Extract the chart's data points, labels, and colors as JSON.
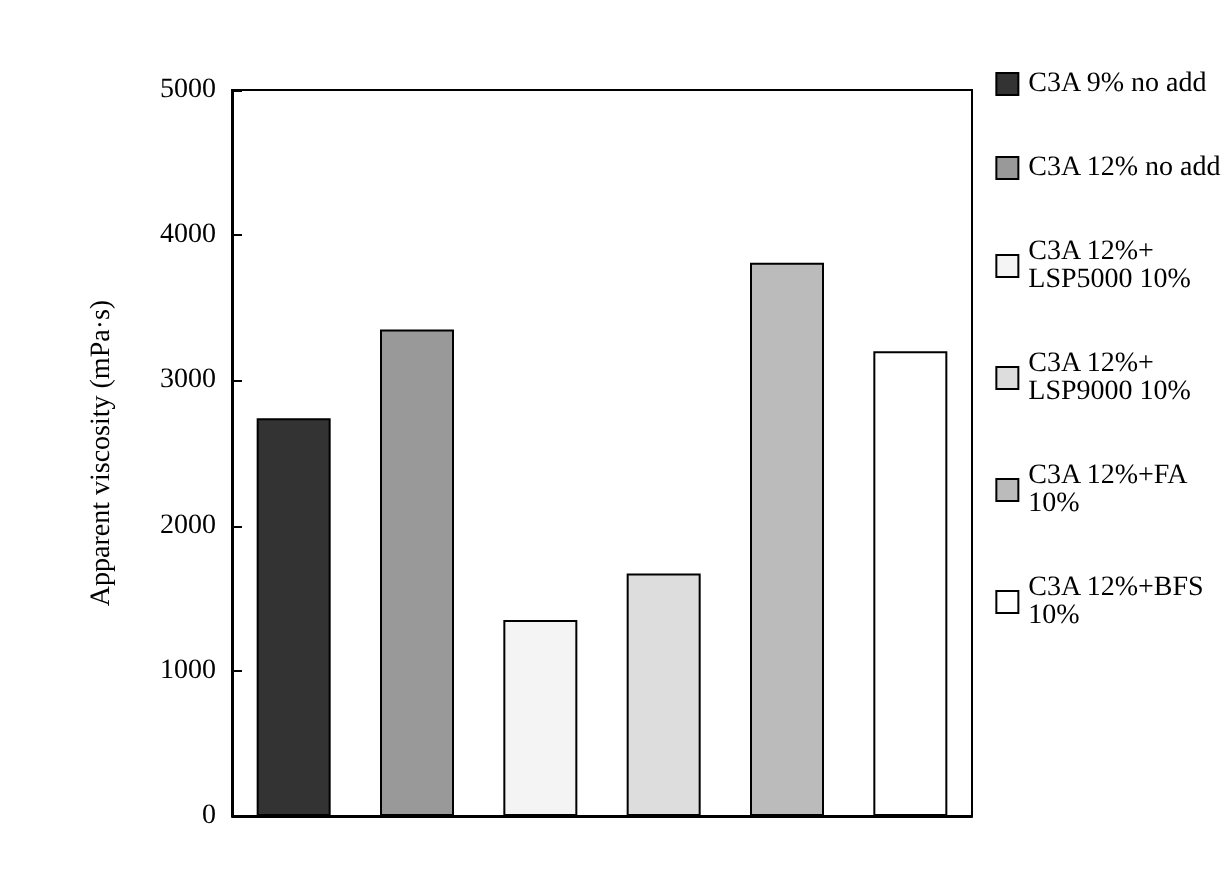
{
  "chart_data": {
    "type": "bar",
    "ylabel": "Apparent viscosity (mPa·s)",
    "categories": [
      null,
      null,
      null,
      null,
      null,
      null
    ],
    "series": [
      {
        "name": "C3A 9% no add",
        "color": "#333333",
        "values": [
          2740,
          null,
          null,
          null,
          null,
          null
        ]
      },
      {
        "name": "C3A 12% no add",
        "color": "#999999",
        "values": [
          null,
          3350,
          null,
          null,
          null,
          null
        ]
      },
      {
        "name": "C3A 12%+ LSP5000 10%",
        "color": "#f4f4f4",
        "values": [
          null,
          null,
          1350,
          null,
          null,
          null
        ]
      },
      {
        "name": "C3A 12%+ LSP9000 10%",
        "color": "#dddddd",
        "values": [
          null,
          null,
          null,
          1670,
          null,
          null
        ]
      },
      {
        "name": "C3A 12%+FA 10%",
        "color": "#bbbbbb",
        "values": [
          null,
          null,
          null,
          null,
          3810,
          null
        ]
      },
      {
        "name": "C3A 12%+BFS 10%",
        "color": "#ffffff",
        "values": [
          null,
          null,
          null,
          null,
          null,
          3200
        ]
      }
    ],
    "ylim": [
      0,
      5000
    ],
    "yticks": [
      0,
      1000,
      2000,
      3000,
      4000,
      5000
    ],
    "grid": false,
    "legend": "right",
    "tick_labels": "y"
  }
}
